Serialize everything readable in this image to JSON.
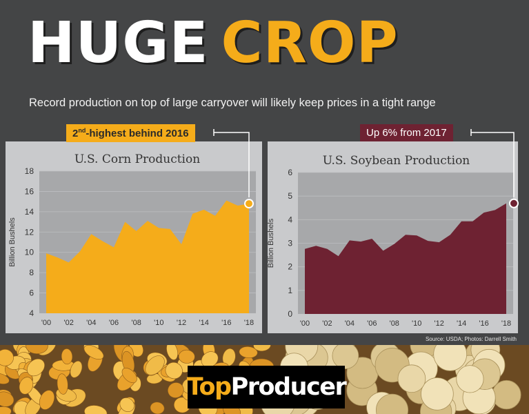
{
  "header": {
    "title_word1": "HUGE",
    "title_word2": "CROP",
    "subtitle": "Record production on top of large carryover will likely keep prices in a tight range"
  },
  "badges": {
    "corn_prefix": "2",
    "corn_sup": "nd",
    "corn_rest": "-highest behind 2016",
    "soy": "Up 6% from 2017"
  },
  "colors": {
    "corn": "#f5ac1a",
    "soy": "#6e2232",
    "plot_bg": "#a7a8aa",
    "panel_bg": "#c9cacc",
    "page_bg": "#444546"
  },
  "chart_data": [
    {
      "type": "area",
      "title": "U.S. Corn Production",
      "ylabel": "Billion Bushels",
      "xlabel": "",
      "ylim": [
        4,
        18
      ],
      "yticks": [
        4,
        6,
        8,
        10,
        12,
        14,
        16,
        18
      ],
      "x": [
        2000,
        2001,
        2002,
        2003,
        2004,
        2005,
        2006,
        2007,
        2008,
        2009,
        2010,
        2011,
        2012,
        2013,
        2014,
        2015,
        2016,
        2017,
        2018
      ],
      "xtick_labels": [
        "'00",
        "'02",
        "'04",
        "'06",
        "'08",
        "'10",
        "'12",
        "'14",
        "'16",
        "'18"
      ],
      "values": [
        9.9,
        9.5,
        9.0,
        10.1,
        11.8,
        11.1,
        10.5,
        13.0,
        12.1,
        13.1,
        12.4,
        12.3,
        10.8,
        13.8,
        14.2,
        13.6,
        15.1,
        14.6,
        14.8
      ],
      "highlight_last": true,
      "color": "#f5ac1a"
    },
    {
      "type": "area",
      "title": "U.S. Soybean Production",
      "ylabel": "Billion Bushels",
      "xlabel": "",
      "ylim": [
        0,
        6
      ],
      "yticks": [
        0,
        1,
        2,
        3,
        4,
        5,
        6
      ],
      "x": [
        2000,
        2001,
        2002,
        2003,
        2004,
        2005,
        2006,
        2007,
        2008,
        2009,
        2010,
        2011,
        2012,
        2013,
        2014,
        2015,
        2016,
        2017,
        2018
      ],
      "xtick_labels": [
        "'00",
        "'02",
        "'04",
        "'06",
        "'08",
        "'10",
        "'12",
        "'14",
        "'16",
        "'18"
      ],
      "values": [
        2.76,
        2.89,
        2.76,
        2.45,
        3.12,
        3.07,
        3.19,
        2.68,
        2.97,
        3.36,
        3.33,
        3.1,
        3.04,
        3.36,
        3.93,
        3.93,
        4.3,
        4.41,
        4.69
      ],
      "highlight_last": true,
      "color": "#6e2232"
    }
  ],
  "source": "Source: USDA; Photos: Darrell Smith",
  "logo": {
    "part1": "Top",
    "part2": "Producer"
  }
}
